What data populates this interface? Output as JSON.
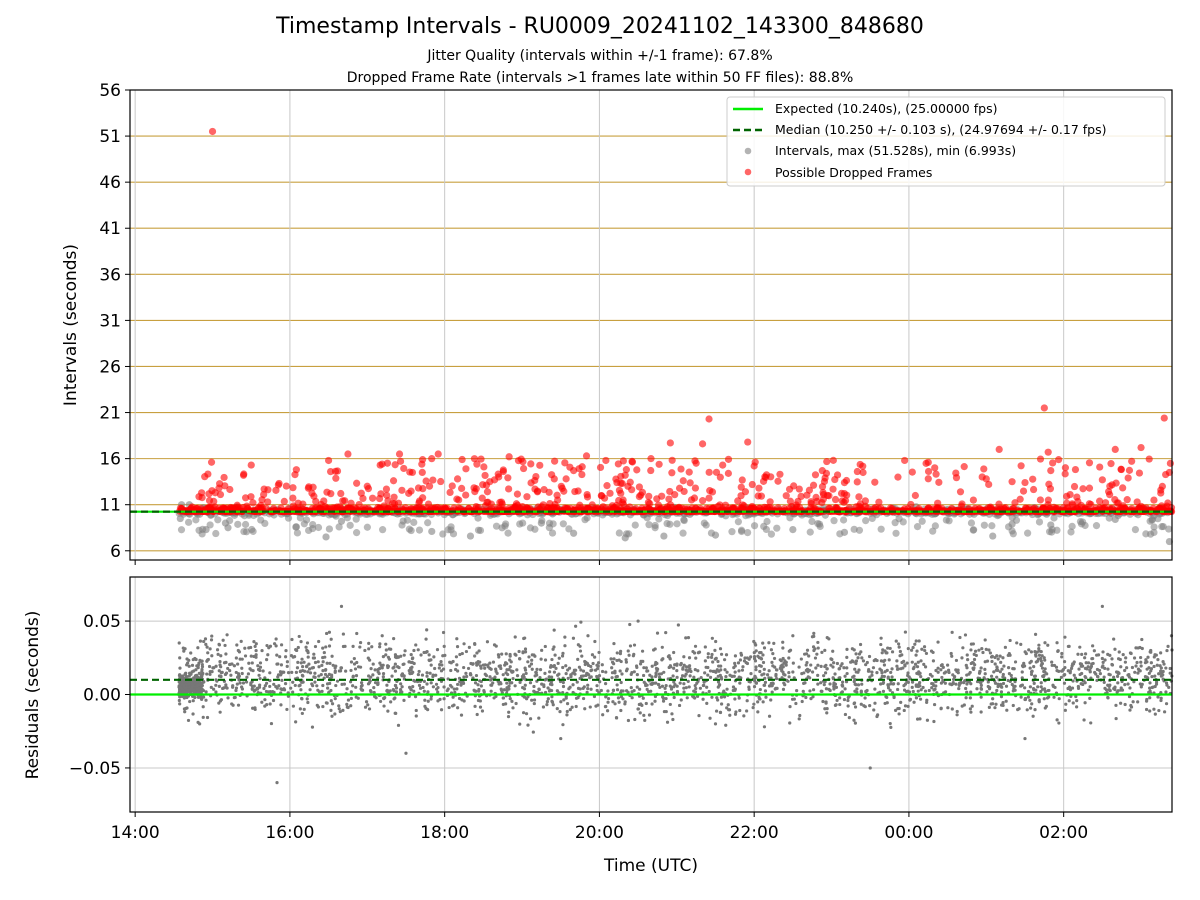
{
  "chart_data": [
    {
      "type": "scatter",
      "title": "Timestamp Intervals - RU0009_20241102_143300_848680",
      "subtitle_lines": [
        "Jitter Quality (intervals within +/-1 frame): 67.8%",
        "Dropped Frame Rate (intervals >1 frames late within 50 FF files): 88.8%"
      ],
      "ylabel": "Intervals (seconds)",
      "xlabel": "",
      "xlim": [
        "2024-11-02 13:56",
        "2024-11-03 03:24"
      ],
      "ylim": [
        5,
        56
      ],
      "yticks": [
        6,
        11,
        16,
        21,
        26,
        31,
        36,
        41,
        46,
        51,
        56
      ],
      "grid": true,
      "legend_position": "top-right",
      "legend": [
        "Expected (10.240s), (25.00000 fps)",
        "Median (10.250 +/- 0.103 s), (24.97694 +/- 0.17 fps)",
        "Intervals, max (51.528s), min (6.993s)",
        "Possible Dropped Frames"
      ],
      "series": [
        {
          "name": "Expected (10.240s), (25.00000 fps)",
          "kind": "hline",
          "y": 10.24,
          "color": "#00ee00",
          "style": "solid"
        },
        {
          "name": "Median (10.250 +/- 0.103 s), (24.97694 +/- 0.17 fps)",
          "kind": "hline",
          "y": 10.25,
          "color": "#006400",
          "style": "dashed"
        },
        {
          "name": "Intervals, max (51.528s), min (6.993s)",
          "kind": "scatter",
          "color": "#808080",
          "points": [
            [
              "2024-11-02 14:35",
              9.5
            ],
            [
              "2024-11-02 14:36",
              11.0
            ],
            [
              "2024-11-02 14:42",
              11.0
            ],
            [
              "2024-11-02 14:55",
              8.3
            ],
            [
              "2024-11-02 15:10",
              9.0
            ],
            [
              "2024-11-02 15:12",
              8.5
            ],
            [
              "2024-11-02 16:05",
              8.6
            ],
            [
              "2024-11-02 16:28",
              7.5
            ],
            [
              "2024-11-02 16:40",
              9.2
            ],
            [
              "2024-11-02 17:50",
              8.1
            ],
            [
              "2024-11-02 18:20",
              7.6
            ],
            [
              "2024-11-02 19:15",
              9.0
            ],
            [
              "2024-11-02 19:40",
              7.9
            ],
            [
              "2024-11-02 20:20",
              7.4
            ],
            [
              "2024-11-02 20:50",
              7.6
            ],
            [
              "2024-11-02 21:30",
              7.7
            ],
            [
              "2024-11-02 22:30",
              8.3
            ],
            [
              "2024-11-02 23:10",
              8.0
            ],
            [
              "2024-11-03 01:05",
              7.6
            ],
            [
              "2024-11-03 01:20",
              8.9
            ],
            [
              "2024-11-03 01:50",
              8.8
            ],
            [
              "2024-11-03 02:40",
              9.4
            ],
            [
              "2024-11-03 03:10",
              9.8
            ],
            [
              "2024-11-03 03:22",
              7.0
            ]
          ]
        },
        {
          "name": "Possible Dropped Frames",
          "kind": "scatter",
          "color": "#ff0000",
          "points": [
            [
              "2024-11-02 15:00",
              51.5
            ],
            [
              "2024-11-02 15:05",
              12.8
            ],
            [
              "2024-11-02 15:30",
              15.3
            ],
            [
              "2024-11-02 15:40",
              12.7
            ],
            [
              "2024-11-02 16:05",
              14.8
            ],
            [
              "2024-11-02 16:30",
              15.8
            ],
            [
              "2024-11-02 16:45",
              16.5
            ],
            [
              "2024-11-02 17:00",
              13.0
            ],
            [
              "2024-11-02 17:10",
              15.3
            ],
            [
              "2024-11-02 17:25",
              16.5
            ],
            [
              "2024-11-02 17:35",
              14.5
            ],
            [
              "2024-11-02 17:55",
              16.5
            ],
            [
              "2024-11-02 18:10",
              13.8
            ],
            [
              "2024-11-02 18:25",
              15.4
            ],
            [
              "2024-11-02 18:35",
              13.5
            ],
            [
              "2024-11-02 18:50",
              16.2
            ],
            [
              "2024-11-02 19:10",
              12.7
            ],
            [
              "2024-11-02 19:25",
              13.8
            ],
            [
              "2024-11-02 19:40",
              14.7
            ],
            [
              "2024-11-02 19:50",
              16.3
            ],
            [
              "2024-11-02 20:05",
              15.8
            ],
            [
              "2024-11-02 20:20",
              14.2
            ],
            [
              "2024-11-02 20:40",
              16.0
            ],
            [
              "2024-11-02 20:55",
              17.7
            ],
            [
              "2024-11-02 21:05",
              13.6
            ],
            [
              "2024-11-02 21:15",
              15.5
            ],
            [
              "2024-11-02 21:20",
              17.6
            ],
            [
              "2024-11-02 21:25",
              20.3
            ],
            [
              "2024-11-02 21:40",
              14.4
            ],
            [
              "2024-11-02 21:50",
              12.9
            ],
            [
              "2024-11-02 21:55",
              17.8
            ],
            [
              "2024-11-02 22:00",
              15.2
            ],
            [
              "2024-11-02 22:20",
              14.3
            ],
            [
              "2024-11-02 22:35",
              12.7
            ],
            [
              "2024-11-02 22:55",
              13.9
            ],
            [
              "2024-11-02 23:10",
              13.4
            ],
            [
              "2024-11-02 23:20",
              14.6
            ],
            [
              "2024-11-03 00:05",
              12.0
            ],
            [
              "2024-11-03 00:15",
              15.6
            ],
            [
              "2024-11-03 00:20",
              15.0
            ],
            [
              "2024-11-03 00:40",
              12.4
            ],
            [
              "2024-11-03 00:50",
              11.5
            ],
            [
              "2024-11-03 01:00",
              13.8
            ],
            [
              "2024-11-03 01:10",
              17.0
            ],
            [
              "2024-11-03 01:20",
              13.5
            ],
            [
              "2024-11-03 01:45",
              21.5
            ],
            [
              "2024-11-03 01:48",
              16.7
            ],
            [
              "2024-11-03 01:50",
              14.7
            ],
            [
              "2024-11-03 02:05",
              12.1
            ],
            [
              "2024-11-03 02:20",
              12.8
            ],
            [
              "2024-11-03 02:30",
              13.7
            ],
            [
              "2024-11-03 02:40",
              17.0
            ],
            [
              "2024-11-03 02:50",
              13.9
            ],
            [
              "2024-11-03 03:00",
              17.2
            ],
            [
              "2024-11-03 03:10",
              11.5
            ],
            [
              "2024-11-03 03:18",
              20.4
            ],
            [
              "2024-11-03 03:22",
              14.5
            ]
          ]
        }
      ]
    },
    {
      "type": "scatter",
      "ylabel": "Residuals (seconds)",
      "xlabel": "Time (UTC)",
      "xlim": [
        "2024-11-02 13:56",
        "2024-11-03 03:24"
      ],
      "ylim": [
        -0.08,
        0.08
      ],
      "yticks": [
        "−0.05",
        "0.00",
        "0.05"
      ],
      "xticks": [
        "14:00",
        "16:00",
        "18:00",
        "20:00",
        "22:00",
        "00:00",
        "02:00"
      ],
      "grid": true,
      "series": [
        {
          "kind": "hline",
          "y": 0.0,
          "color": "#00ee00",
          "style": "solid"
        },
        {
          "kind": "hline",
          "y": 0.01,
          "color": "#006400",
          "style": "dashed"
        },
        {
          "kind": "scatter",
          "color": "#777777",
          "points": [
            [
              "2024-11-02 14:40",
              0.01
            ],
            [
              "2024-11-02 14:50",
              -0.02
            ],
            [
              "2024-11-02 15:20",
              0.03
            ],
            [
              "2024-11-02 15:50",
              -0.06
            ],
            [
              "2024-11-02 16:40",
              0.06
            ],
            [
              "2024-11-02 17:30",
              -0.04
            ],
            [
              "2024-11-02 18:30",
              0.02
            ],
            [
              "2024-11-02 19:30",
              -0.03
            ],
            [
              "2024-11-02 20:30",
              0.05
            ],
            [
              "2024-11-02 21:30",
              -0.02
            ],
            [
              "2024-11-02 22:30",
              0.04
            ],
            [
              "2024-11-02 23:30",
              -0.05
            ],
            [
              "2024-11-03 00:30",
              0.02
            ],
            [
              "2024-11-03 01:30",
              -0.03
            ],
            [
              "2024-11-03 02:30",
              0.06
            ],
            [
              "2024-11-03 03:10",
              -0.01
            ]
          ]
        }
      ]
    }
  ],
  "style": {
    "red_color": "#ff0000",
    "gray_color": "#808080",
    "resid_color": "#777777",
    "expected_color": "#00ee00",
    "median_color": "#006400",
    "hgrid_color": "#c8a040",
    "grid_color": "#c8c8c8"
  }
}
